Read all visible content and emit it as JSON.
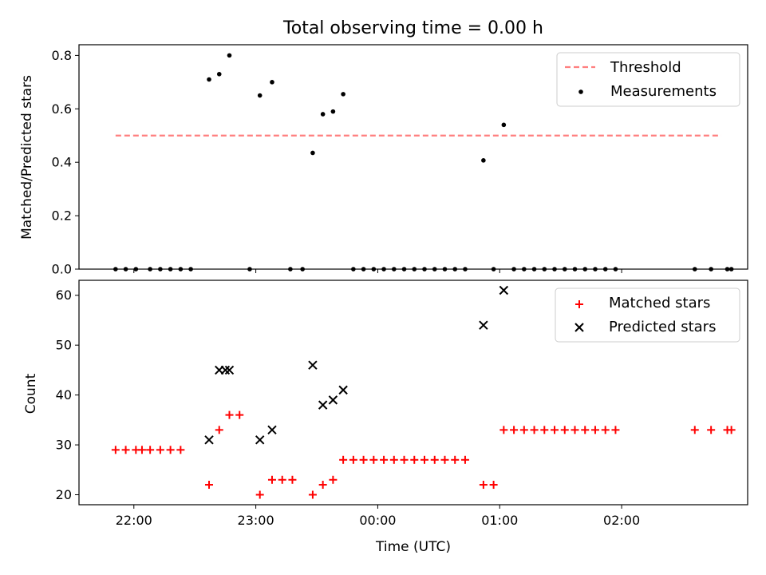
{
  "chart_data": [
    {
      "type": "scatter",
      "title": "Total observing time = 0.00 h",
      "ylabel": "Matched/Predicted stars",
      "xlabel": "",
      "ylim": [
        0,
        0.84
      ],
      "yticks": [
        "0.0",
        "0.2",
        "0.4",
        "0.6",
        "0.8"
      ],
      "xlim": [
        "21:33",
        "03:02"
      ],
      "legend": {
        "placement": "top-right",
        "entries": [
          "Threshold",
          "Measurements"
        ]
      },
      "threshold": {
        "name": "Threshold",
        "value": 0.5,
        "x_start": "21:51",
        "x_end": "02:49",
        "color": "#ff7f7f",
        "style": "dashed"
      },
      "measurements": {
        "name": "Measurements",
        "color": "#000000",
        "points": [
          [
            "21:51",
            0
          ],
          [
            "21:56",
            0
          ],
          [
            "22:01",
            0
          ],
          [
            "22:08",
            0
          ],
          [
            "22:13",
            0
          ],
          [
            "22:18",
            0
          ],
          [
            "22:23",
            0
          ],
          [
            "22:28",
            0
          ],
          [
            "22:37",
            0.71
          ],
          [
            "22:42",
            0.73
          ],
          [
            "22:47",
            0.8
          ],
          [
            "22:57",
            0
          ],
          [
            "23:02",
            0.65
          ],
          [
            "23:08",
            0.7
          ],
          [
            "23:17",
            0
          ],
          [
            "23:23",
            0
          ],
          [
            "23:28",
            0.435
          ],
          [
            "23:33",
            0.58
          ],
          [
            "23:38",
            0.59
          ],
          [
            "23:43",
            0.655
          ],
          [
            "23:48",
            0
          ],
          [
            "23:53",
            0
          ],
          [
            "23:58",
            0
          ],
          [
            "00:03",
            0
          ],
          [
            "00:08",
            0
          ],
          [
            "00:13",
            0
          ],
          [
            "00:18",
            0
          ],
          [
            "00:23",
            0
          ],
          [
            "00:28",
            0
          ],
          [
            "00:33",
            0
          ],
          [
            "00:38",
            0
          ],
          [
            "00:43",
            0
          ],
          [
            "00:52",
            0.407
          ],
          [
            "00:57",
            0
          ],
          [
            "01:02",
            0.54
          ],
          [
            "01:07",
            0
          ],
          [
            "01:12",
            0
          ],
          [
            "01:17",
            0
          ],
          [
            "01:22",
            0
          ],
          [
            "01:27",
            0
          ],
          [
            "01:32",
            0
          ],
          [
            "01:37",
            0
          ],
          [
            "01:42",
            0
          ],
          [
            "01:47",
            0
          ],
          [
            "01:52",
            0
          ],
          [
            "01:57",
            0
          ],
          [
            "02:36",
            0
          ],
          [
            "02:44",
            0
          ],
          [
            "02:52",
            0
          ],
          [
            "02:54",
            0
          ]
        ]
      }
    },
    {
      "type": "scatter",
      "title": "",
      "xlabel": "Time (UTC)",
      "ylabel": "Count",
      "ylim": [
        18,
        63
      ],
      "yticks": [
        "20",
        "30",
        "40",
        "50",
        "60"
      ],
      "xlim": [
        "21:33",
        "03:02"
      ],
      "xticks": [
        "22:00",
        "23:00",
        "00:00",
        "01:00",
        "02:00"
      ],
      "legend": {
        "placement": "top-right",
        "entries": [
          "Matched stars",
          "Predicted stars"
        ]
      },
      "series": [
        {
          "name": "Matched stars",
          "marker": "plus",
          "color": "#ff0000",
          "points": [
            [
              "21:51",
              29
            ],
            [
              "21:56",
              29
            ],
            [
              "22:01",
              29
            ],
            [
              "22:04",
              29
            ],
            [
              "22:08",
              29
            ],
            [
              "22:13",
              29
            ],
            [
              "22:18",
              29
            ],
            [
              "22:23",
              29
            ],
            [
              "22:37",
              22
            ],
            [
              "22:42",
              33
            ],
            [
              "22:47",
              36
            ],
            [
              "22:52",
              36
            ],
            [
              "23:02",
              20
            ],
            [
              "23:08",
              23
            ],
            [
              "23:13",
              23
            ],
            [
              "23:18",
              23
            ],
            [
              "23:28",
              20
            ],
            [
              "23:33",
              22
            ],
            [
              "23:38",
              23
            ],
            [
              "23:43",
              27
            ],
            [
              "23:48",
              27
            ],
            [
              "23:53",
              27
            ],
            [
              "23:58",
              27
            ],
            [
              "00:03",
              27
            ],
            [
              "00:08",
              27
            ],
            [
              "00:13",
              27
            ],
            [
              "00:18",
              27
            ],
            [
              "00:23",
              27
            ],
            [
              "00:28",
              27
            ],
            [
              "00:33",
              27
            ],
            [
              "00:38",
              27
            ],
            [
              "00:43",
              27
            ],
            [
              "00:52",
              22
            ],
            [
              "00:57",
              22
            ],
            [
              "01:02",
              33
            ],
            [
              "01:07",
              33
            ],
            [
              "01:12",
              33
            ],
            [
              "01:17",
              33
            ],
            [
              "01:22",
              33
            ],
            [
              "01:27",
              33
            ],
            [
              "01:32",
              33
            ],
            [
              "01:37",
              33
            ],
            [
              "01:42",
              33
            ],
            [
              "01:47",
              33
            ],
            [
              "01:52",
              33
            ],
            [
              "01:57",
              33
            ],
            [
              "02:36",
              33
            ],
            [
              "02:44",
              33
            ],
            [
              "02:52",
              33
            ],
            [
              "02:54",
              33
            ]
          ]
        },
        {
          "name": "Predicted stars",
          "marker": "x",
          "color": "#000000",
          "points": [
            [
              "22:37",
              31
            ],
            [
              "22:42",
              45
            ],
            [
              "22:45",
              45
            ],
            [
              "22:47",
              45
            ],
            [
              "23:02",
              31
            ],
            [
              "23:08",
              33
            ],
            [
              "23:28",
              46
            ],
            [
              "23:33",
              38
            ],
            [
              "23:38",
              39
            ],
            [
              "23:43",
              41
            ],
            [
              "00:52",
              54
            ],
            [
              "01:02",
              61
            ]
          ]
        }
      ]
    }
  ]
}
